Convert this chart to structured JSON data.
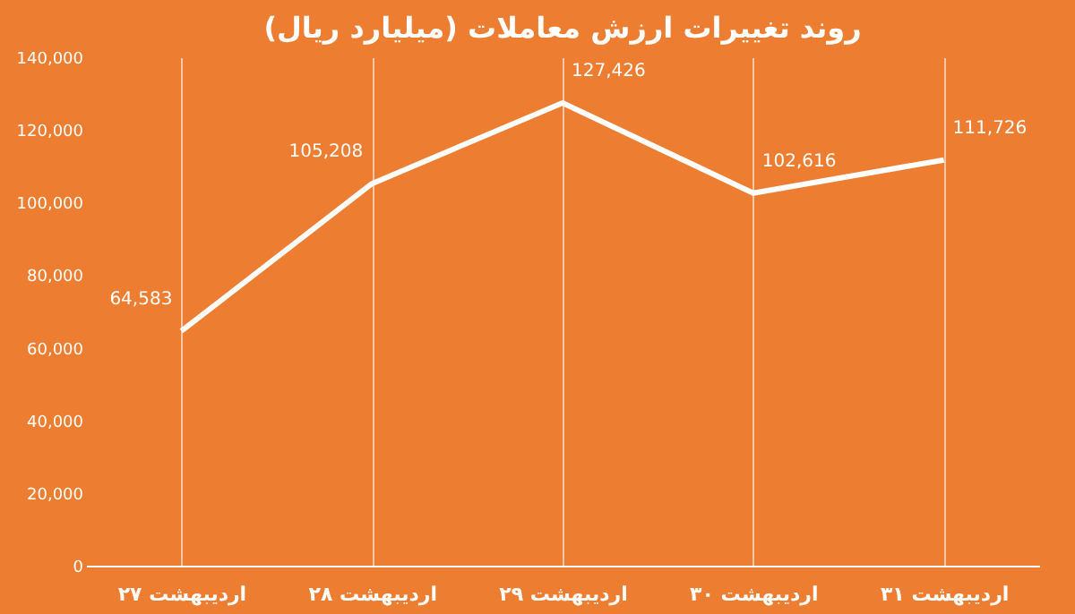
{
  "chart_data": {
    "type": "line",
    "title": "روند تغییرات ارزش معاملات (میلیارد ریال)",
    "categories": [
      "۲۷ اردیبهشت",
      "۲۸ اردیبهشت",
      "۲۹ اردیبهشت",
      "۳۰ اردیبهشت",
      "۳۱ اردیبهشت"
    ],
    "series": [
      {
        "color": "#ffffff",
        "values": [
          64583,
          105208,
          127426,
          102616,
          111726
        ],
        "value_labels": [
          "64,583",
          "105,208",
          "127,426",
          "102,616",
          "111,726"
        ]
      }
    ],
    "ylim": [
      0,
      140000
    ],
    "yticks": [
      {
        "value": 0,
        "label": "0"
      },
      {
        "value": 20000,
        "label": "20,000"
      },
      {
        "value": 40000,
        "label": "40,000"
      },
      {
        "value": 60000,
        "label": "60,000"
      },
      {
        "value": 80000,
        "label": "80,000"
      },
      {
        "value": 100000,
        "label": "100,000"
      },
      {
        "value": 120000,
        "label": "120,000"
      },
      {
        "value": 140000,
        "label": "140,000"
      }
    ],
    "grid": "x",
    "marker": "none",
    "line_style": "solid"
  }
}
